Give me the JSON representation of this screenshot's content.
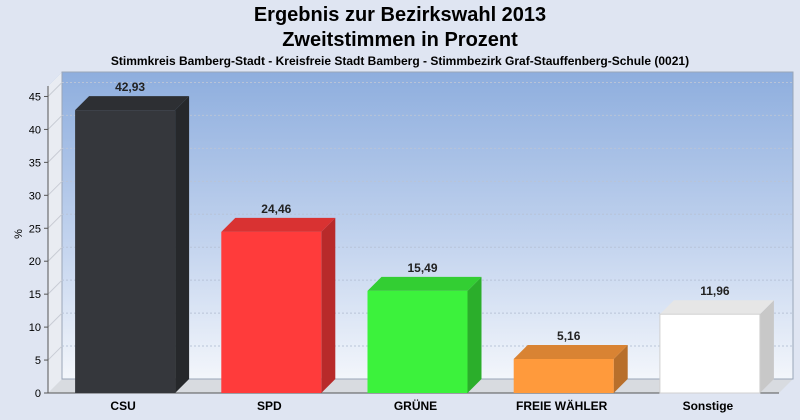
{
  "chart_data": {
    "type": "bar",
    "title": "Ergebnis zur Bezirkswahl 2013",
    "subtitle": "Zweitstimmen in Prozent",
    "caption": "Stimmkreis Bamberg-Stadt - Kreisfreie Stadt Bamberg - Stimmbezirk Graf-Stauffenberg-Schule (0021)",
    "ylabel": "%",
    "ylim": [
      0,
      47.5
    ],
    "yticks": [
      0,
      5,
      10,
      15,
      20,
      25,
      30,
      35,
      40,
      45
    ],
    "grid": true,
    "categories": [
      "CSU",
      "SPD",
      "GRÜNE",
      "FREIE WÄHLER",
      "Sonstige"
    ],
    "values": [
      42.93,
      24.46,
      15.49,
      5.16,
      11.96
    ],
    "value_labels": [
      "42,93",
      "24,46",
      "15,49",
      "5,16",
      "11,96"
    ],
    "colors": [
      "#35373c",
      "#ff3b3b",
      "#3cf23c",
      "#ff9a3c",
      "#ffffff"
    ]
  }
}
